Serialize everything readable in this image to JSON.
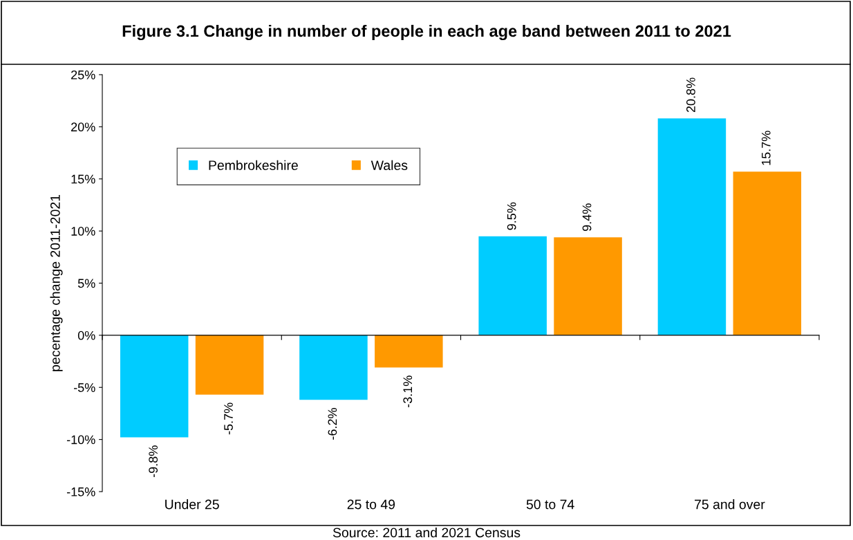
{
  "chart_data": {
    "type": "bar",
    "title": "Figure 3.1 Change in number of people in each age band between 2011 to 2021",
    "ylabel": "pecentage change 2011-2021",
    "categories": [
      "Under 25",
      "25 to 49",
      "50 to 74",
      "75 and over"
    ],
    "series": [
      {
        "name": "Pembrokeshire",
        "color": "#00ccff",
        "values": [
          -9.8,
          -6.2,
          9.5,
          20.8
        ],
        "value_labels": [
          "-9.8%",
          "-6.2%",
          "9.5%",
          "20.8%"
        ]
      },
      {
        "name": "Wales",
        "color": "#ff9900",
        "values": [
          -5.7,
          -3.1,
          9.4,
          15.7
        ],
        "value_labels": [
          "-5.7%",
          "-3.1%",
          "9.4%",
          "15.7%"
        ]
      }
    ],
    "ylim": [
      -15,
      25
    ],
    "yticks": [
      {
        "value": -15,
        "label": "-15%"
      },
      {
        "value": -10,
        "label": "-10%"
      },
      {
        "value": -5,
        "label": "-5%"
      },
      {
        "value": 0,
        "label": "0%"
      },
      {
        "value": 5,
        "label": "5%"
      },
      {
        "value": 10,
        "label": "10%"
      },
      {
        "value": 15,
        "label": "15%"
      },
      {
        "value": 20,
        "label": "20%"
      },
      {
        "value": 25,
        "label": "25%"
      }
    ],
    "legend": "top left",
    "annotations": [
      "Source: 2011 and 2021 Census"
    ]
  }
}
